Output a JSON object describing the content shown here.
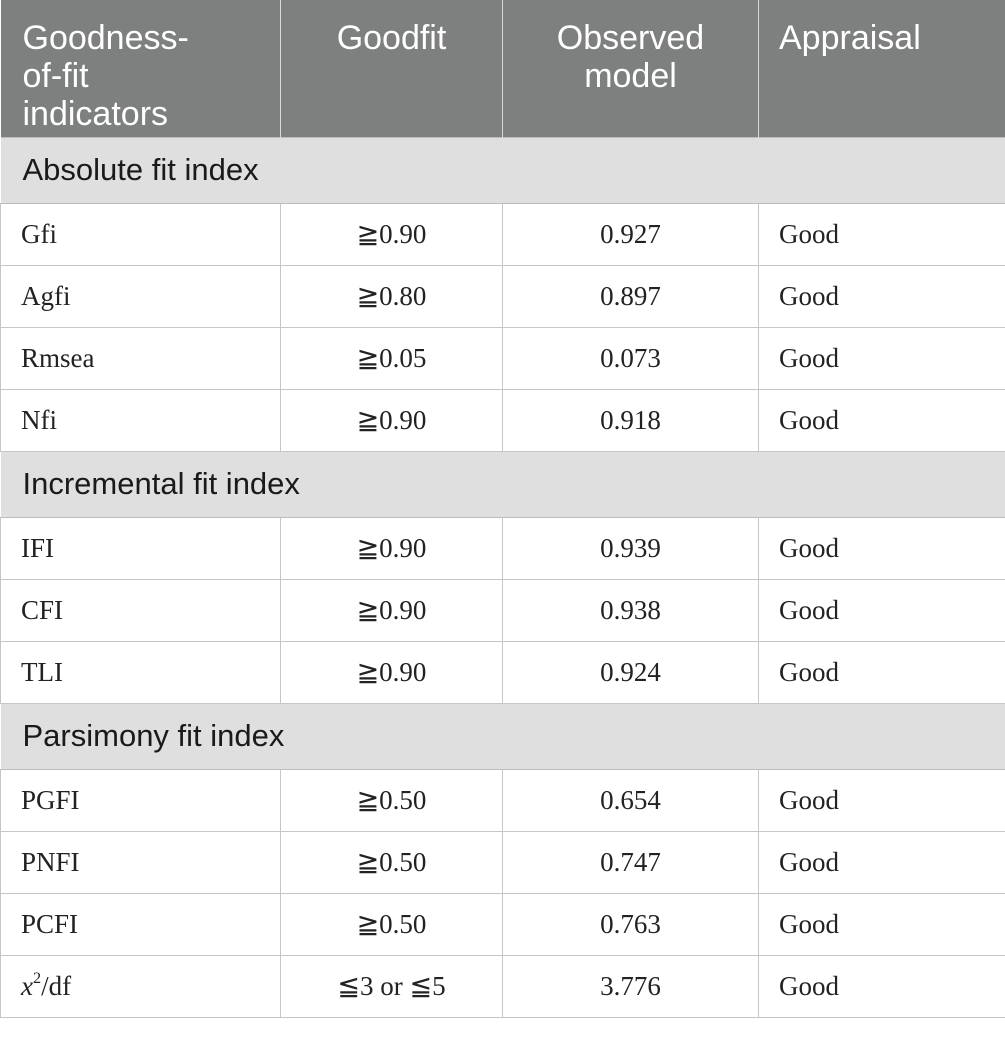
{
  "header": {
    "col1": "Goodness-\nof-fit\nindicators",
    "col2": "Goodfit",
    "col3": "Observed\nmodel",
    "col4": "Appraisal"
  },
  "sections": [
    {
      "title": "Absolute fit index",
      "rows": [
        {
          "indicator": "Gfi",
          "goodfit": "≧0.90",
          "observed": "0.927",
          "appraisal": "Good"
        },
        {
          "indicator": "Agfi",
          "goodfit": "≧0.80",
          "observed": "0.897",
          "appraisal": "Good"
        },
        {
          "indicator": "Rmsea",
          "goodfit": "≧0.05",
          "observed": "0.073",
          "appraisal": "Good"
        },
        {
          "indicator": "Nfi",
          "goodfit": "≧0.90",
          "observed": "0.918",
          "appraisal": "Good"
        }
      ]
    },
    {
      "title": "Incremental fit index",
      "rows": [
        {
          "indicator": "IFI",
          "goodfit": "≧0.90",
          "observed": "0.939",
          "appraisal": "Good"
        },
        {
          "indicator": "CFI",
          "goodfit": "≧0.90",
          "observed": "0.938",
          "appraisal": "Good"
        },
        {
          "indicator": "TLI",
          "goodfit": "≧0.90",
          "observed": "0.924",
          "appraisal": "Good"
        }
      ]
    },
    {
      "title": "Parsimony fit index",
      "rows": [
        {
          "indicator": "PGFI",
          "goodfit": "≧0.50",
          "observed": "0.654",
          "appraisal": "Good"
        },
        {
          "indicator": "PNFI",
          "goodfit": "≧0.50",
          "observed": "0.747",
          "appraisal": "Good"
        },
        {
          "indicator": "PCFI",
          "goodfit": "≧0.50",
          "observed": "0.763",
          "appraisal": "Good"
        }
      ]
    }
  ],
  "chi_row": {
    "indicator_var": "x",
    "indicator_sup": "2",
    "indicator_rest": "/df",
    "goodfit": "≦3 or ≦5",
    "observed": "3.776",
    "appraisal": "Good"
  }
}
